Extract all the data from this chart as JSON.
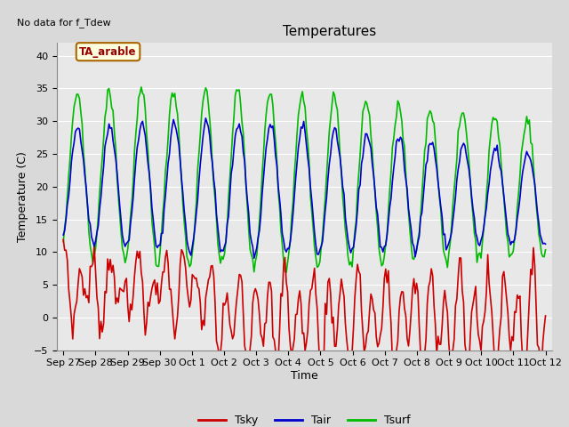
{
  "title": "Temperatures",
  "xlabel": "Time",
  "ylabel": "Temperature (C)",
  "watermark": "No data for f_Tdew",
  "box_label": "TA_arable",
  "ylim": [
    -5,
    42
  ],
  "yticks": [
    -5,
    0,
    5,
    10,
    15,
    20,
    25,
    30,
    35,
    40
  ],
  "background_color": "#d9d9d9",
  "plot_bg_color": "#e8e8e8",
  "grid_color": "#ffffff",
  "x_labels": [
    "Sep 27",
    "Sep 28",
    "Sep 29",
    "Sep 30",
    "Oct 1",
    "Oct 2",
    "Oct 3",
    "Oct 4",
    "Oct 5",
    "Oct 6",
    "Oct 7",
    "Oct 8",
    "Oct 9",
    "Oct 10",
    "Oct 11",
    "Oct 12"
  ],
  "tsky_color": "#cc0000",
  "tair_color": "#0000cc",
  "tsurf_color": "#00bb00",
  "line_width": 1.2,
  "title_fontsize": 11,
  "axis_fontsize": 9,
  "tick_fontsize": 8
}
